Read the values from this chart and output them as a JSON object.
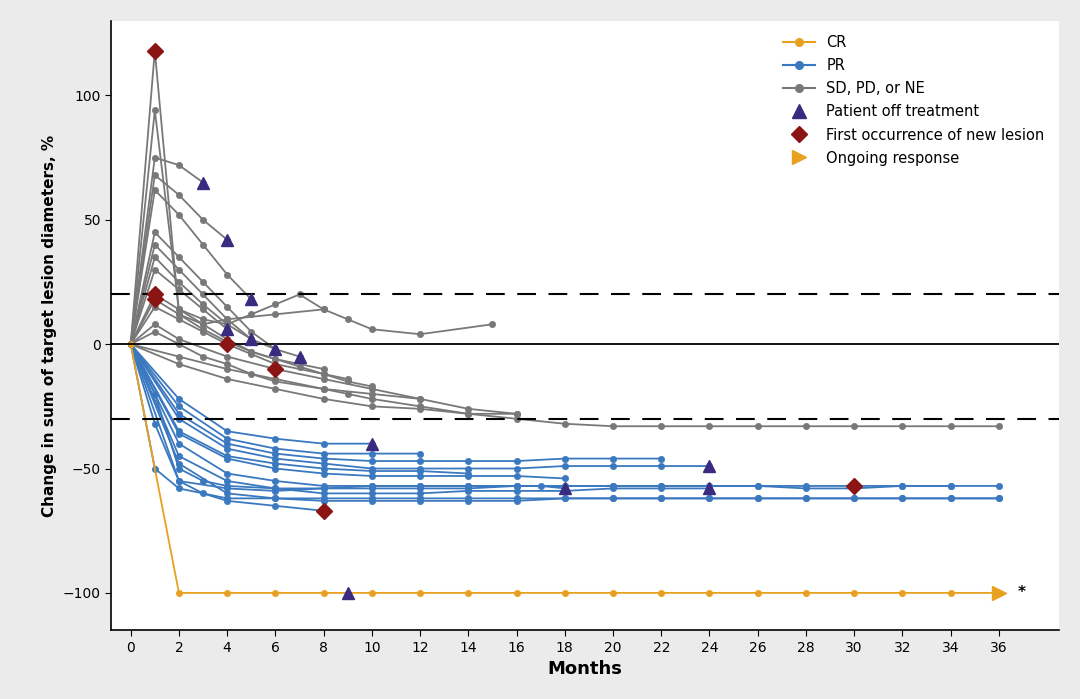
{
  "background_color": "#ebebeb",
  "plot_bg_color": "#ffffff",
  "ylim": [
    -115,
    130
  ],
  "xlim": [
    -0.8,
    38.5
  ],
  "yticks": [
    -100,
    -50,
    0,
    50,
    100
  ],
  "xticks": [
    0,
    2,
    4,
    6,
    8,
    10,
    12,
    14,
    16,
    18,
    20,
    22,
    24,
    26,
    28,
    30,
    32,
    34,
    36
  ],
  "xlabel": "Months",
  "ylabel": "Change in sum of target lesion diameters, %",
  "cr_color": "#e8a020",
  "pr_color": "#3a78c0",
  "sd_color": "#787878",
  "off_treatment_color": "#3a2a80",
  "new_lesion_color": "#8b1515",
  "ongoing_color": "#e8a020",
  "cr_patients": [
    {
      "x": [
        0,
        2,
        4,
        6,
        8,
        10,
        12,
        14,
        16,
        18,
        20,
        22,
        24,
        26,
        28,
        30,
        32,
        34,
        36
      ],
      "y": [
        0,
        -100,
        -100,
        -100,
        -100,
        -100,
        -100,
        -100,
        -100,
        -100,
        -100,
        -100,
        -100,
        -100,
        -100,
        -100,
        -100,
        -100,
        -100
      ],
      "off_treatment": [],
      "new_lesion": [],
      "ongoing": [
        36
      ]
    }
  ],
  "pr_patients": [
    {
      "x": [
        0,
        1,
        2,
        4,
        6,
        8,
        10,
        12,
        14,
        16,
        18,
        20,
        22,
        24,
        26,
        28,
        30,
        32,
        34,
        36
      ],
      "y": [
        0,
        -50,
        -58,
        -62,
        -62,
        -63,
        -63,
        -63,
        -63,
        -63,
        -62,
        -62,
        -62,
        -62,
        -62,
        -62,
        -62,
        -62,
        -62,
        -62
      ],
      "off_treatment": [],
      "new_lesion": [],
      "ongoing": []
    },
    {
      "x": [
        0,
        2,
        4,
        6,
        8,
        10,
        12,
        14,
        16,
        18,
        20,
        22,
        24,
        26,
        28,
        30,
        32,
        34,
        36
      ],
      "y": [
        0,
        -48,
        -60,
        -62,
        -62,
        -62,
        -62,
        -62,
        -62,
        -62,
        -62,
        -62,
        -62,
        -62,
        -62,
        -62,
        -62,
        -62,
        -62
      ],
      "off_treatment": [],
      "new_lesion": [],
      "ongoing": []
    },
    {
      "x": [
        0,
        2,
        4,
        6,
        8,
        10,
        12,
        14,
        16,
        18,
        20,
        22,
        24,
        26,
        28,
        30,
        32,
        34,
        36
      ],
      "y": [
        0,
        -55,
        -58,
        -59,
        -58,
        -57,
        -57,
        -57,
        -57,
        -57,
        -57,
        -57,
        -57,
        -57,
        -58,
        -58,
        -57,
        -57,
        -57
      ],
      "off_treatment": [],
      "new_lesion": [],
      "ongoing": []
    },
    {
      "x": [
        0,
        2,
        4,
        6,
        8,
        10,
        12,
        14,
        16,
        18,
        20,
        22,
        24
      ],
      "y": [
        0,
        -45,
        -55,
        -58,
        -60,
        -60,
        -60,
        -59,
        -59,
        -59,
        -58,
        -58,
        -58
      ],
      "off_treatment": [
        24
      ],
      "new_lesion": [],
      "ongoing": []
    },
    {
      "x": [
        0,
        2,
        4,
        6,
        8,
        10,
        12,
        14,
        16,
        18,
        20,
        22,
        24,
        26,
        28,
        30,
        32,
        34
      ],
      "y": [
        0,
        -40,
        -52,
        -55,
        -57,
        -57,
        -57,
        -57,
        -57,
        -57,
        -57,
        -57,
        -57,
        -57,
        -57,
        -57,
        -57,
        -57
      ],
      "off_treatment": [],
      "new_lesion": [
        30
      ],
      "ongoing": []
    },
    {
      "x": [
        0,
        2,
        4,
        6,
        8,
        10,
        12,
        14,
        16,
        18
      ],
      "y": [
        0,
        -36,
        -46,
        -50,
        -52,
        -53,
        -53,
        -53,
        -53,
        -54
      ],
      "off_treatment": [],
      "new_lesion": [],
      "ongoing": []
    },
    {
      "x": [
        0,
        2,
        4,
        6,
        8,
        10,
        12,
        14
      ],
      "y": [
        0,
        -35,
        -45,
        -48,
        -50,
        -51,
        -51,
        -52
      ],
      "off_treatment": [],
      "new_lesion": [],
      "ongoing": []
    },
    {
      "x": [
        0,
        2,
        4,
        6,
        8,
        10,
        12,
        14,
        16,
        18,
        20,
        22,
        24
      ],
      "y": [
        0,
        -30,
        -42,
        -46,
        -48,
        -50,
        -50,
        -50,
        -50,
        -49,
        -49,
        -49,
        -49
      ],
      "off_treatment": [
        24
      ],
      "new_lesion": [],
      "ongoing": []
    },
    {
      "x": [
        0,
        2,
        4,
        6,
        8,
        10,
        12,
        14,
        16,
        18,
        20,
        22
      ],
      "y": [
        0,
        -28,
        -40,
        -44,
        -46,
        -47,
        -47,
        -47,
        -47,
        -46,
        -46,
        -46
      ],
      "off_treatment": [],
      "new_lesion": [],
      "ongoing": []
    },
    {
      "x": [
        0,
        2,
        4,
        6,
        8,
        10,
        12
      ],
      "y": [
        0,
        -25,
        -38,
        -42,
        -44,
        -44,
        -44
      ],
      "off_treatment": [],
      "new_lesion": [],
      "ongoing": []
    },
    {
      "x": [
        0,
        2,
        4,
        6,
        8,
        10
      ],
      "y": [
        0,
        -22,
        -35,
        -38,
        -40,
        -40
      ],
      "off_treatment": [
        10
      ],
      "new_lesion": [],
      "ongoing": []
    },
    {
      "x": [
        0,
        1,
        2,
        3,
        4,
        6,
        8
      ],
      "y": [
        0,
        -32,
        -55,
        -60,
        -63,
        -65,
        -67
      ],
      "off_treatment": [],
      "new_lesion": [
        8
      ],
      "ongoing": []
    },
    {
      "x": [
        0,
        1,
        2,
        3,
        4,
        6,
        8,
        10,
        12,
        14,
        16,
        17,
        18
      ],
      "y": [
        0,
        -20,
        -50,
        -55,
        -57,
        -58,
        -58,
        -58,
        -58,
        -58,
        -57,
        -57,
        -58
      ],
      "off_treatment": [
        18
      ],
      "new_lesion": [],
      "ongoing": []
    }
  ],
  "sd_patients": [
    {
      "x": [
        0,
        1,
        2,
        3,
        4,
        6,
        8
      ],
      "y": [
        0,
        118,
        12,
        8,
        10,
        12,
        14
      ],
      "off_treatment": [],
      "new_lesion": [
        1
      ],
      "ongoing": []
    },
    {
      "x": [
        0,
        1,
        2,
        3,
        4,
        5,
        6,
        7,
        8,
        9,
        10,
        12,
        15
      ],
      "y": [
        0,
        94,
        14,
        10,
        8,
        12,
        16,
        20,
        14,
        10,
        6,
        4,
        8
      ],
      "off_treatment": [],
      "new_lesion": [],
      "ongoing": []
    },
    {
      "x": [
        0,
        1,
        2,
        3
      ],
      "y": [
        0,
        75,
        72,
        65
      ],
      "off_treatment": [
        3
      ],
      "new_lesion": [],
      "ongoing": []
    },
    {
      "x": [
        0,
        1,
        2,
        3,
        4
      ],
      "y": [
        0,
        68,
        60,
        50,
        42
      ],
      "off_treatment": [
        4
      ],
      "new_lesion": [],
      "ongoing": []
    },
    {
      "x": [
        0,
        1,
        2,
        3,
        4,
        5
      ],
      "y": [
        0,
        62,
        52,
        40,
        28,
        18
      ],
      "off_treatment": [
        5
      ],
      "new_lesion": [],
      "ongoing": []
    },
    {
      "x": [
        0,
        1,
        2,
        3,
        4,
        5,
        6
      ],
      "y": [
        0,
        45,
        35,
        25,
        15,
        5,
        -2
      ],
      "off_treatment": [
        6
      ],
      "new_lesion": [],
      "ongoing": []
    },
    {
      "x": [
        0,
        1,
        2,
        3,
        4,
        5
      ],
      "y": [
        0,
        40,
        30,
        20,
        10,
        2
      ],
      "off_treatment": [
        5
      ],
      "new_lesion": [],
      "ongoing": []
    },
    {
      "x": [
        0,
        1,
        2,
        3,
        4,
        5,
        6,
        7
      ],
      "y": [
        0,
        35,
        25,
        16,
        8,
        2,
        -2,
        -5
      ],
      "off_treatment": [
        7
      ],
      "new_lesion": [],
      "ongoing": []
    },
    {
      "x": [
        0,
        1,
        2,
        3,
        4
      ],
      "y": [
        0,
        30,
        22,
        14,
        6
      ],
      "off_treatment": [
        4
      ],
      "new_lesion": [],
      "ongoing": []
    },
    {
      "x": [
        0,
        1,
        2,
        3,
        4,
        5,
        6,
        8
      ],
      "y": [
        0,
        20,
        14,
        8,
        2,
        -3,
        -6,
        -10
      ],
      "off_treatment": [],
      "new_lesion": [
        1
      ],
      "ongoing": []
    },
    {
      "x": [
        0,
        1,
        2,
        3,
        4,
        5,
        6,
        8,
        9,
        10
      ],
      "y": [
        0,
        15,
        10,
        5,
        0,
        -4,
        -8,
        -12,
        -15,
        -17
      ],
      "off_treatment": [],
      "new_lesion": [
        4
      ],
      "ongoing": []
    },
    {
      "x": [
        0,
        1,
        2,
        3,
        4,
        5,
        6,
        7,
        8,
        9
      ],
      "y": [
        0,
        18,
        12,
        6,
        1,
        -3,
        -6,
        -9,
        -12,
        -14
      ],
      "off_treatment": [],
      "new_lesion": [
        1
      ],
      "ongoing": []
    },
    {
      "x": [
        0,
        1,
        2,
        3,
        4,
        5,
        6,
        8,
        9,
        10,
        12,
        14,
        16,
        18,
        20,
        22,
        24,
        26,
        28,
        30,
        32,
        34,
        36
      ],
      "y": [
        0,
        5,
        0,
        -5,
        -8,
        -12,
        -15,
        -18,
        -20,
        -22,
        -25,
        -28,
        -30,
        -32,
        -33,
        -33,
        -33,
        -33,
        -33,
        -33,
        -33,
        -33,
        -33
      ],
      "off_treatment": [],
      "new_lesion": [],
      "ongoing": []
    },
    {
      "x": [
        0,
        1,
        2,
        4,
        6,
        8,
        10,
        12,
        14,
        16
      ],
      "y": [
        0,
        8,
        2,
        -5,
        -10,
        -14,
        -18,
        -22,
        -26,
        -28
      ],
      "off_treatment": [],
      "new_lesion": [
        6
      ],
      "ongoing": []
    },
    {
      "x": [
        0,
        2,
        4,
        6,
        8,
        10,
        12
      ],
      "y": [
        0,
        -5,
        -10,
        -14,
        -18,
        -20,
        -22
      ],
      "off_treatment": [],
      "new_lesion": [],
      "ongoing": []
    },
    {
      "x": [
        0,
        2,
        4,
        6,
        8,
        10,
        12,
        14,
        16
      ],
      "y": [
        0,
        -8,
        -14,
        -18,
        -22,
        -25,
        -26,
        -28,
        -28
      ],
      "off_treatment": [],
      "new_lesion": [],
      "ongoing": []
    }
  ],
  "extra_purple_triangles": [
    [
      9,
      -100
    ]
  ],
  "asterisk_x": 36.8,
  "asterisk_y": -100,
  "legend_fontsize": 10.5,
  "tick_fontsize": 10,
  "xlabel_fontsize": 13,
  "ylabel_fontsize": 11
}
